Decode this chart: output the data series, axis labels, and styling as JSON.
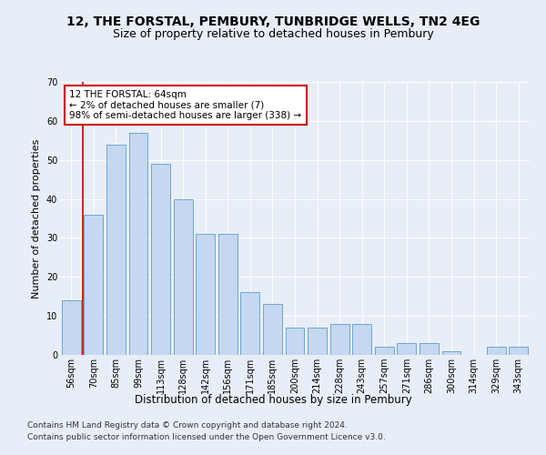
{
  "title1": "12, THE FORSTAL, PEMBURY, TUNBRIDGE WELLS, TN2 4EG",
  "title2": "Size of property relative to detached houses in Pembury",
  "xlabel": "Distribution of detached houses by size in Pembury",
  "ylabel": "Number of detached properties",
  "categories": [
    "56sqm",
    "70sqm",
    "85sqm",
    "99sqm",
    "113sqm",
    "128sqm",
    "142sqm",
    "156sqm",
    "171sqm",
    "185sqm",
    "200sqm",
    "214sqm",
    "228sqm",
    "243sqm",
    "257sqm",
    "271sqm",
    "286sqm",
    "300sqm",
    "314sqm",
    "329sqm",
    "343sqm"
  ],
  "values": [
    14,
    36,
    54,
    57,
    49,
    40,
    31,
    31,
    16,
    13,
    7,
    7,
    8,
    8,
    2,
    3,
    3,
    1,
    0,
    2,
    2
  ],
  "bar_color": "#c5d8f0",
  "bar_edge_color": "#5b9bd5",
  "annotation_text": "12 THE FORSTAL: 64sqm\n← 2% of detached houses are smaller (7)\n98% of semi-detached houses are larger (338) →",
  "annotation_box_facecolor": "#ffffff",
  "annotation_box_edgecolor": "#cc0000",
  "vline_color": "#cc0000",
  "vline_x": 0.5,
  "ylim": [
    0,
    70
  ],
  "yticks": [
    0,
    10,
    20,
    30,
    40,
    50,
    60,
    70
  ],
  "background_color": "#e8eef7",
  "grid_color": "#ffffff",
  "footer1": "Contains HM Land Registry data © Crown copyright and database right 2024.",
  "footer2": "Contains public sector information licensed under the Open Government Licence v3.0.",
  "title1_fontsize": 10,
  "title2_fontsize": 9,
  "xlabel_fontsize": 8.5,
  "ylabel_fontsize": 8,
  "tick_fontsize": 7,
  "annotation_fontsize": 7.5,
  "footer_fontsize": 6.5
}
